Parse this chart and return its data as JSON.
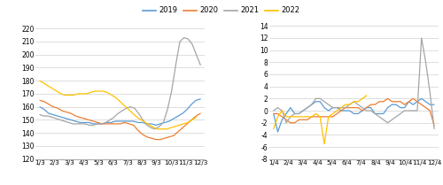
{
  "left": {
    "xlabels": [
      "1/3",
      "2/3",
      "3/3",
      "4/3",
      "5/3",
      "6/3",
      "7/3",
      "8/3",
      "9/3",
      "10/3",
      "11/3",
      "12/3"
    ],
    "ylim": [
      120,
      222
    ],
    "yticks": [
      120,
      130,
      140,
      150,
      160,
      170,
      180,
      190,
      200,
      210,
      220
    ],
    "y2019": [
      160,
      158,
      155,
      154,
      153,
      152,
      151,
      150,
      149,
      148,
      148,
      148,
      147,
      147,
      147,
      148,
      148,
      149,
      149,
      149,
      149,
      149,
      148,
      148,
      147,
      147,
      146,
      147,
      148,
      149,
      151,
      153,
      155,
      158,
      162,
      165,
      166
    ],
    "y2020": [
      165,
      164,
      162,
      160,
      159,
      157,
      156,
      155,
      153,
      152,
      151,
      150,
      149,
      148,
      147,
      147,
      147,
      147,
      147,
      148,
      147,
      146,
      142,
      139,
      137,
      136,
      135,
      135,
      136,
      137,
      138,
      141,
      144,
      147,
      150,
      153,
      155
    ],
    "y2021": [
      154,
      153,
      153,
      152,
      151,
      150,
      149,
      148,
      147,
      147,
      147,
      147,
      146,
      146,
      147,
      147,
      148,
      150,
      152,
      155,
      157,
      159,
      160,
      159,
      155,
      150,
      146,
      144,
      143,
      145,
      148,
      158,
      172,
      192,
      210,
      213,
      212,
      208,
      200,
      192
    ],
    "y2022": [
      180,
      178,
      176,
      174,
      172,
      170,
      169,
      169,
      169,
      170,
      170,
      170,
      171,
      172,
      172,
      172,
      171,
      169,
      167,
      164,
      161,
      158,
      155,
      152,
      150,
      148,
      146,
      144,
      143,
      143,
      143,
      144,
      145,
      146,
      147,
      148,
      150,
      152,
      null
    ]
  },
  "right": {
    "xlabels": [
      "1/4",
      "2/4",
      "3/4",
      "4/4",
      "5/4",
      "6/4",
      "7/4",
      "8/4",
      "9/4",
      "10/4",
      "11/4",
      "12/4"
    ],
    "ylim": [
      -8,
      14
    ],
    "yticks": [
      -8,
      -6,
      -4,
      -2,
      0,
      2,
      4,
      6,
      8,
      10,
      12,
      14
    ],
    "y2019": [
      -0.5,
      -3.5,
      -1.5,
      -0.5,
      0.5,
      -0.5,
      -0.5,
      0,
      0.5,
      1,
      1.5,
      1.5,
      0.5,
      0,
      0.5,
      0.5,
      0,
      0,
      0,
      -0.5,
      -0.5,
      0,
      0.5,
      0.5,
      -0.5,
      -0.5,
      -0.5,
      0.5,
      1,
      1,
      0.5,
      0.5,
      1.5,
      1,
      1.5,
      2,
      1.5,
      1,
      1
    ],
    "y2020": [
      -0.5,
      -0.5,
      -1,
      -1.5,
      -2,
      -2,
      -1.5,
      -1.5,
      -1.5,
      -1,
      -1,
      -1,
      -1,
      -1,
      -1,
      -0.5,
      0,
      0.5,
      0.5,
      0.5,
      0.5,
      0,
      0.5,
      1,
      1,
      1.5,
      1.5,
      2,
      1.5,
      1.5,
      1.5,
      1,
      1.5,
      2,
      1.5,
      1,
      0.5,
      0,
      -2.5
    ],
    "y2021": [
      0,
      0.5,
      0,
      -2,
      -1,
      -0.5,
      -0.5,
      0,
      0.5,
      1,
      2,
      2,
      1.5,
      1,
      0.5,
      0.5,
      0.5,
      0.5,
      1,
      1.5,
      1,
      0.5,
      0,
      0,
      -0.5,
      -1,
      -1.5,
      -2,
      -1.5,
      -1,
      -0.5,
      0,
      0,
      0,
      0,
      12,
      8,
      3,
      -3
    ],
    "y2022": [
      -3,
      -1,
      0,
      -1,
      -1,
      -1,
      -1,
      -1,
      -1,
      -1,
      -0.5,
      -1,
      -5.5,
      -1,
      -0.5,
      0,
      0.5,
      1,
      1,
      1.5,
      1.5,
      2,
      2.5,
      null,
      null,
      null,
      null,
      null,
      null,
      null,
      null,
      null,
      null,
      null,
      null,
      null,
      null,
      null,
      null
    ]
  },
  "colors": {
    "2019": "#5B9BD5",
    "2020": "#ED7D31",
    "2021": "#A5A5A5",
    "2022": "#FFC000"
  },
  "legend_labels": [
    "2019",
    "2020",
    "2021",
    "2022"
  ]
}
